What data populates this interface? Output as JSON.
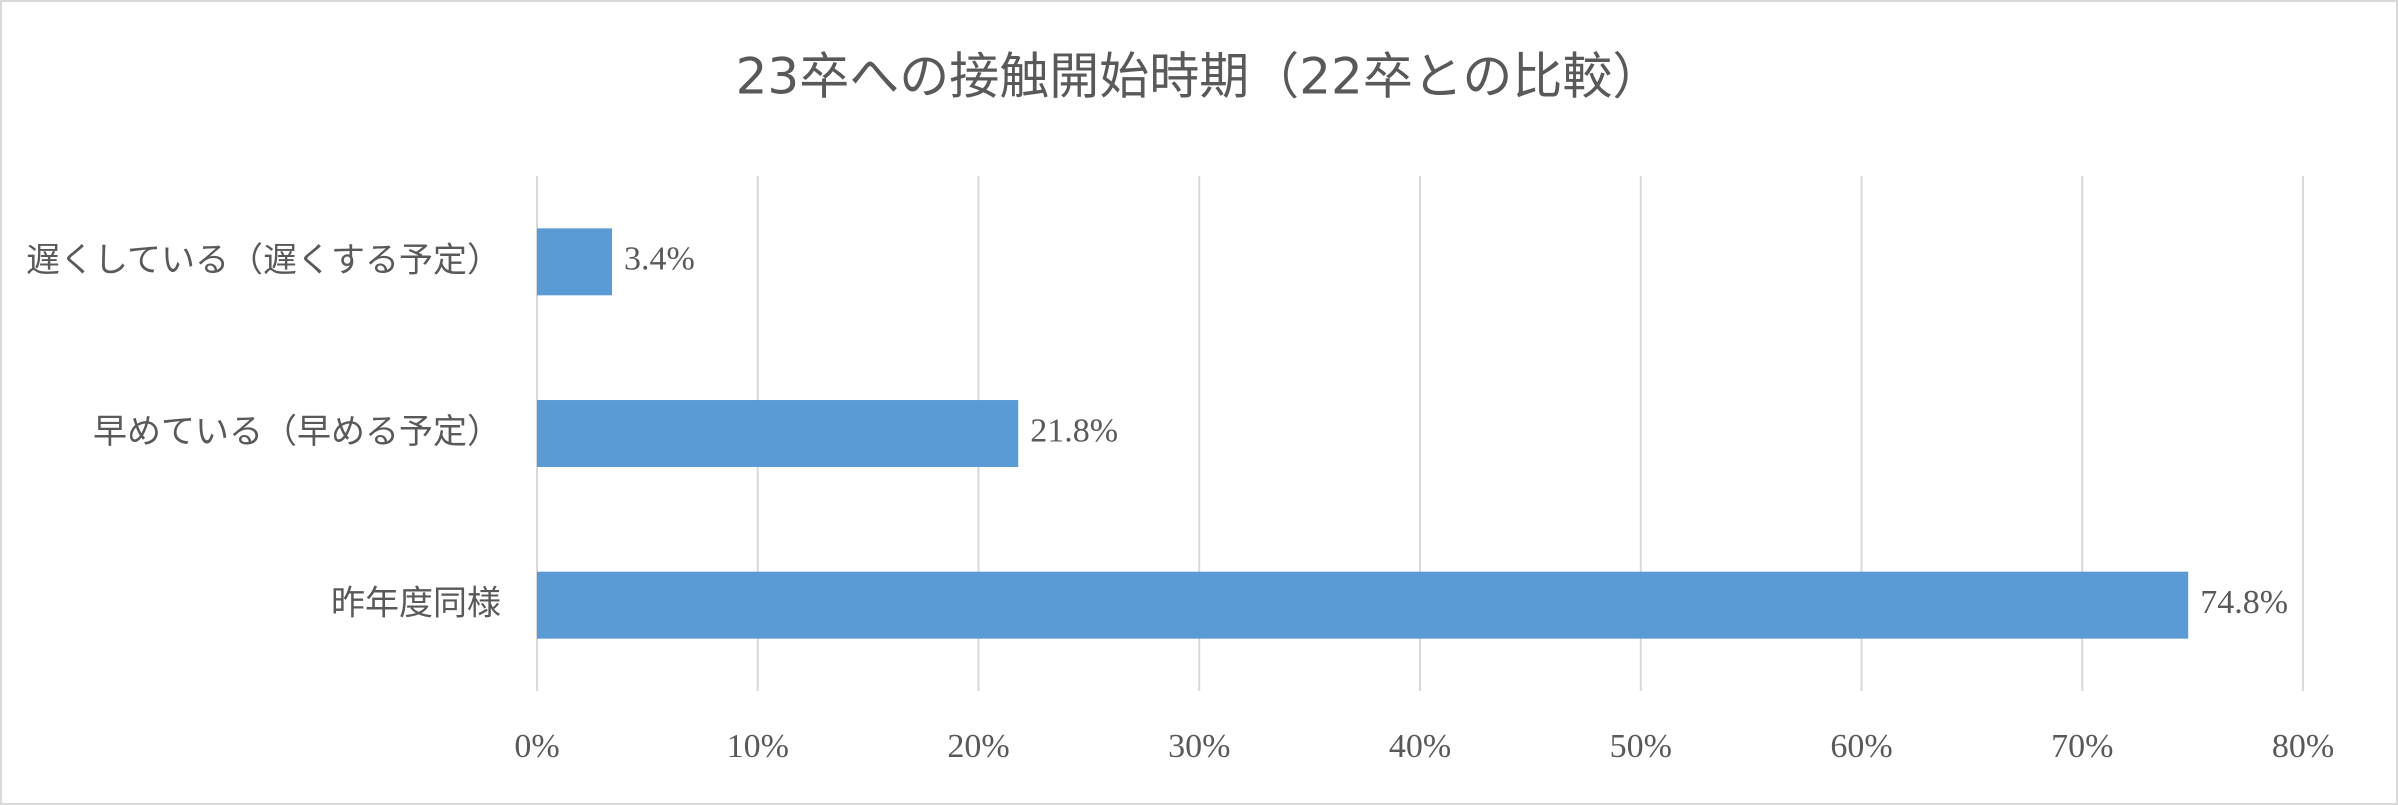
{
  "chart_data": {
    "type": "bar",
    "orientation": "horizontal",
    "title": "23卒への接触開始時期（22卒との比較）",
    "categories": [
      "遅くしている（遅くする予定）",
      "早めている（早める予定）",
      "昨年度同様"
    ],
    "values": [
      3.4,
      21.8,
      74.8
    ],
    "value_labels": [
      "3.4%",
      "21.8%",
      "74.8%"
    ],
    "color": "#5b9bd5",
    "xlim": [
      0,
      80
    ],
    "xticks": [
      {
        "value": 0,
        "label": "0%"
      },
      {
        "value": 10,
        "label": "10%"
      },
      {
        "value": 20,
        "label": "20%"
      },
      {
        "value": 30,
        "label": "30%"
      },
      {
        "value": 40,
        "label": "40%"
      },
      {
        "value": 50,
        "label": "50%"
      },
      {
        "value": 60,
        "label": "60%"
      },
      {
        "value": 70,
        "label": "70%"
      },
      {
        "value": 80,
        "label": "80%"
      }
    ],
    "grid": true
  }
}
